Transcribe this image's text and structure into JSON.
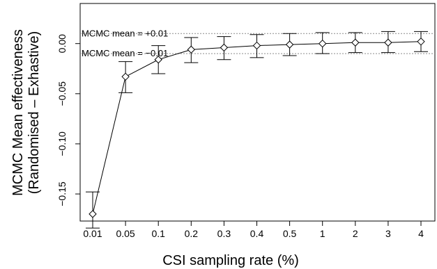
{
  "chart_data": {
    "type": "line",
    "title": "",
    "xlabel": "CSI sampling rate (%)",
    "ylabel_lines": [
      "MCMC Mean effectiveness",
      "(Randomised – Exhastive)"
    ],
    "categories": [
      "0.01",
      "0.05",
      "0.1",
      "0.2",
      "0.3",
      "0.4",
      "0.5",
      "1",
      "2",
      "3",
      "4"
    ],
    "series": [
      {
        "values": [
          -0.17,
          -0.033,
          -0.016,
          -0.006,
          -0.004,
          -0.002,
          -0.001,
          0.0,
          0.001,
          0.001,
          0.002
        ],
        "lower": [
          -0.184,
          -0.049,
          -0.03,
          -0.019,
          -0.016,
          -0.014,
          -0.012,
          -0.01,
          -0.009,
          -0.009,
          -0.008
        ],
        "upper": [
          -0.148,
          -0.018,
          -0.002,
          0.006,
          0.007,
          0.009,
          0.01,
          0.011,
          0.011,
          0.012,
          0.012
        ],
        "marker": "diamond",
        "color": "#000000"
      }
    ],
    "reference_lines": [
      {
        "y": 0.01,
        "label": "MCMC mean = +0.01",
        "style": "dotted",
        "color": "#8c8c8c"
      },
      {
        "y": -0.01,
        "label": "MCMC mean = −0.01",
        "style": "dotted",
        "color": "#8c8c8c"
      }
    ],
    "yticks": [
      0.0,
      -0.05,
      -0.1,
      -0.15
    ],
    "ytick_labels": [
      "0.00",
      "−0.05",
      "−0.10",
      "−0.15"
    ],
    "ylim": [
      -0.177,
      0.04
    ],
    "grid": false,
    "legend": "none"
  }
}
